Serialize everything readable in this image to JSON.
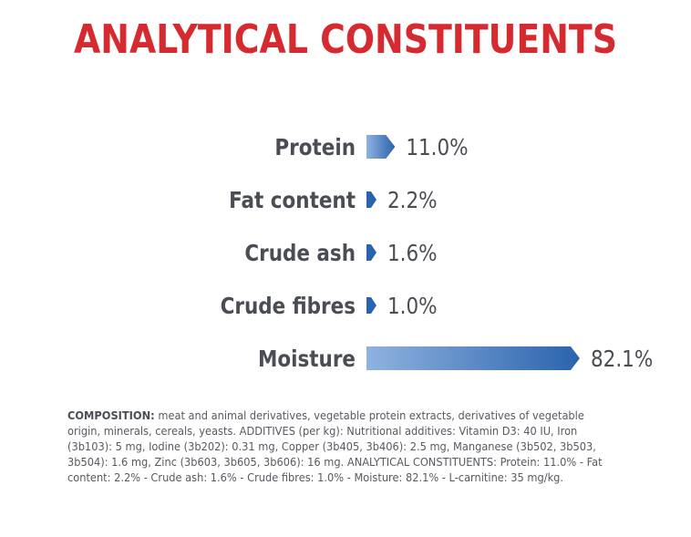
{
  "title": "ANALYTICAL CONSTITUENTS",
  "chart_data": {
    "type": "bar",
    "orientation": "horizontal",
    "categories": [
      "Protein",
      "Fat content",
      "Crude ash",
      "Crude fibres",
      "Moisture"
    ],
    "values": [
      11.0,
      2.2,
      1.6,
      1.0,
      82.1
    ],
    "value_labels": [
      "11.0%",
      "2.2%",
      "1.6%",
      "1.0%",
      "82.1%"
    ],
    "unit": "%",
    "colors": {
      "bar_start": "#8fb2e0",
      "bar_end": "#2a63ad",
      "label": "#4a4e54",
      "value": "#4a4e54"
    },
    "legend": "none",
    "grid": false
  },
  "composition": {
    "heading": "COMPOSITION:",
    "text": "meat and animal derivatives, vegetable protein extracts, derivatives of vegetable origin, minerals, cereals, yeasts. ADDITIVES (per kg): Nutritional additives: Vitamin D3: 40 IU, Iron (3b103): 5 mg, Iodine (3b202): 0.31 mg, Copper (3b405, 3b406): 2.5 mg, Manganese (3b502, 3b503, 3b504): 1.6 mg, Zinc (3b603, 3b605, 3b606): 16 mg. ANALYTICAL CONSTITUENTS: Protein: 11.0% - Fat content: 2.2% - Crude ash: 1.6% - Crude fibres: 1.0% - Moisture: 82.1% - L-carnitine: 35 mg/kg."
  }
}
